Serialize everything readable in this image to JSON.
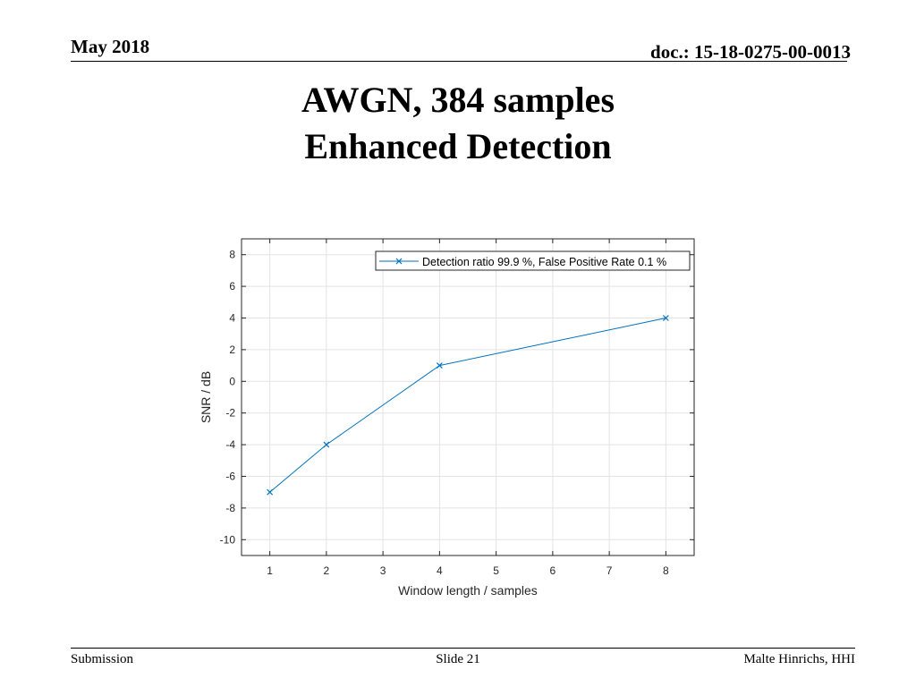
{
  "header": {
    "date": "May 2018",
    "doc": "doc.: 15-18-0275-00-0013"
  },
  "slide_title": {
    "line1": "AWGN, 384 samples",
    "line2": "Enhanced Detection"
  },
  "chart_data": {
    "type": "line",
    "x_tick_labels": [
      "1",
      "2",
      "3",
      "4",
      "5",
      "6",
      "7",
      "8"
    ],
    "y_ticks": [
      -10,
      -8,
      -6,
      -4,
      -2,
      0,
      2,
      4,
      6,
      8
    ],
    "xlim": [
      0.5,
      8.5
    ],
    "ylim": [
      -11,
      9
    ],
    "xlabel": "Window length / samples",
    "ylabel": "SNR / dB",
    "grid": true,
    "legend_position": "top-right",
    "series": [
      {
        "name": "Detection ratio 99.9 %, False Positive Rate 0.1 %",
        "color": "#0072BD",
        "marker": "x",
        "x": [
          1,
          2,
          4,
          8
        ],
        "y": [
          -7,
          -4,
          1,
          4
        ]
      }
    ]
  },
  "footer": {
    "left": "Submission",
    "center": "Slide 21",
    "right": "Malte Hinrichs, HHI"
  }
}
